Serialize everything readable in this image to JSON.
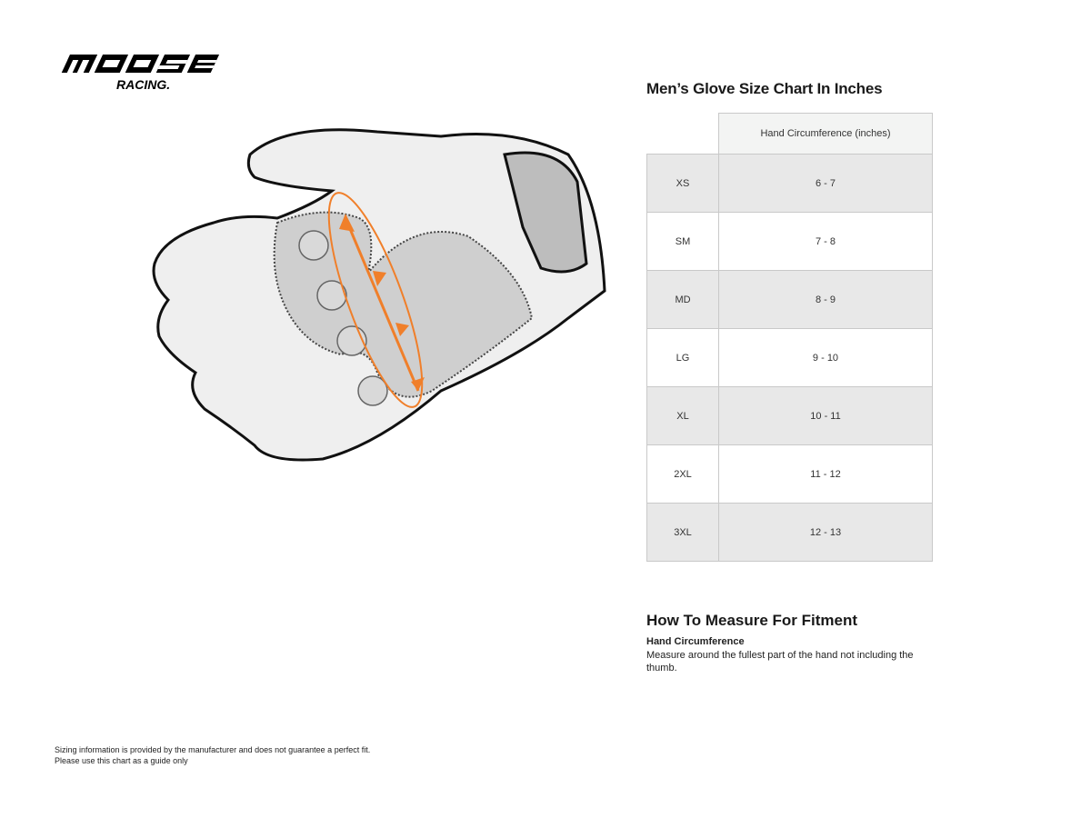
{
  "brand": {
    "logo_text": "MOOSE RACING"
  },
  "chart": {
    "title": "Men’s Glove Size Chart In Inches",
    "column_header": "Hand Circumference (inches)",
    "rows": [
      {
        "size": "XS",
        "range": "6 - 7"
      },
      {
        "size": "SM",
        "range": "7 - 8"
      },
      {
        "size": "MD",
        "range": "8 - 9"
      },
      {
        "size": "LG",
        "range": "9 - 10"
      },
      {
        "size": "XL",
        "range": "10 - 11"
      },
      {
        "size": "2XL",
        "range": "11 - 12"
      },
      {
        "size": "3XL",
        "range": "12 - 13"
      }
    ]
  },
  "measure": {
    "title": "How To Measure For Fitment",
    "subtitle": "Hand Circumference",
    "description": "Measure around the fullest part of the hand not including the thumb."
  },
  "disclaimer": {
    "line1": "Sizing information is provided by the manufacturer and does not guarantee a perfect fit.",
    "line2": "Please use this chart as a guide only"
  },
  "colors": {
    "accent": "#f07f2a",
    "row_shade": "#e8e8e8",
    "header_shade": "#f3f4f3"
  }
}
